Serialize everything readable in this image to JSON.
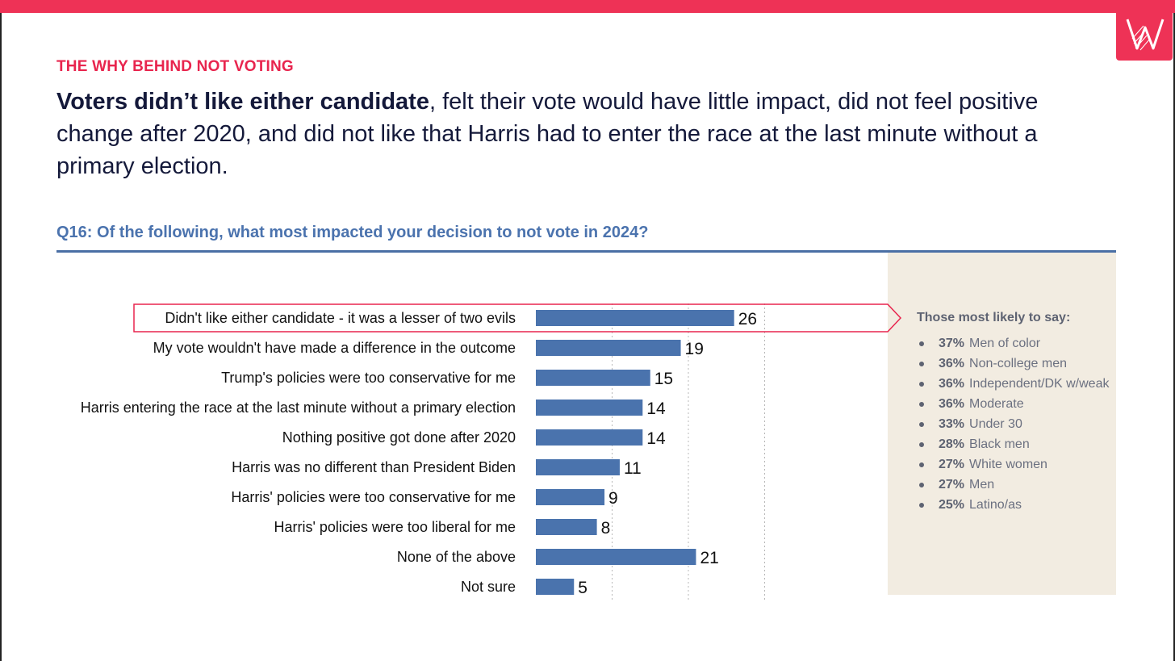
{
  "kicker": "THE WHY BEHIND NOT VOTING",
  "headline": {
    "bold": "Voters didn’t like either candidate",
    "rest": ", felt their vote would have little impact, did not feel positive change after 2020, and did not like that Harris had to enter the race at the last minute without a primary election."
  },
  "question": "Q16: Of the following, what most impacted your decision to not vote in 2024?",
  "colors": {
    "accent": "#EE3256",
    "bar": "#4A73AD",
    "headline": "#14193A",
    "question": "#4B73AE",
    "panel_bg": "#F2ECE1"
  },
  "chart_data": {
    "type": "bar",
    "orientation": "horizontal",
    "categories": [
      "Didn't like either candidate - it was a lesser of two evils",
      "My vote wouldn't have made a difference in the outcome",
      "Trump's policies were too conservative for me",
      "Harris entering the race at the last minute without a primary election",
      "Nothing positive got done after 2020",
      "Harris was no different than President Biden",
      "Harris' policies were too conservative for me",
      "Harris' policies were too liberal for me",
      "None of the above",
      "Not sure"
    ],
    "values": [
      26,
      19,
      15,
      14,
      14,
      11,
      9,
      8,
      21,
      5
    ],
    "xlim": [
      0,
      40
    ],
    "gridlines": [
      10,
      20,
      30
    ],
    "highlighted_index": 0
  },
  "side_panel": {
    "title": "Those most likely to say:",
    "items": [
      {
        "pct": "37%",
        "label": "Men of color"
      },
      {
        "pct": "36%",
        "label": "Non-college men"
      },
      {
        "pct": "36%",
        "label": "Independent/DK w/weak"
      },
      {
        "pct": "36%",
        "label": "Moderate"
      },
      {
        "pct": "33%",
        "label": "Under 30"
      },
      {
        "pct": "28%",
        "label": "Black men"
      },
      {
        "pct": "27%",
        "label": "White women"
      },
      {
        "pct": "27%",
        "label": "Men"
      },
      {
        "pct": "25%",
        "label": "Latino/as"
      }
    ]
  }
}
